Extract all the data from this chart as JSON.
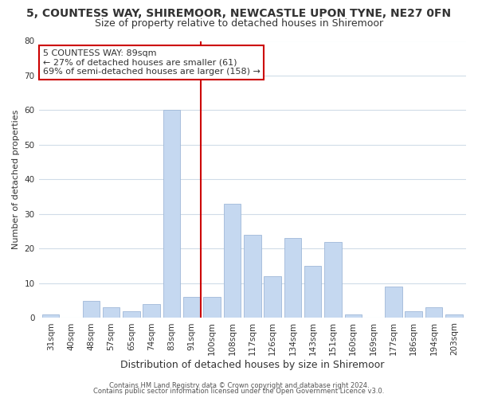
{
  "title": "5, COUNTESS WAY, SHIREMOOR, NEWCASTLE UPON TYNE, NE27 0FN",
  "subtitle": "Size of property relative to detached houses in Shiremoor",
  "xlabel": "Distribution of detached houses by size in Shiremoor",
  "ylabel": "Number of detached properties",
  "categories": [
    "31sqm",
    "40sqm",
    "48sqm",
    "57sqm",
    "65sqm",
    "74sqm",
    "83sqm",
    "91sqm",
    "100sqm",
    "108sqm",
    "117sqm",
    "126sqm",
    "134sqm",
    "143sqm",
    "151sqm",
    "160sqm",
    "169sqm",
    "177sqm",
    "186sqm",
    "194sqm",
    "203sqm"
  ],
  "values": [
    1,
    0,
    5,
    3,
    2,
    4,
    60,
    6,
    6,
    33,
    24,
    12,
    23,
    15,
    22,
    1,
    0,
    9,
    2,
    3,
    1
  ],
  "bar_color": "#c5d8f0",
  "bar_edge_color": "#a0b8d8",
  "highlight_index": 7,
  "highlight_line_color": "#cc0000",
  "ylim": [
    0,
    80
  ],
  "yticks": [
    0,
    10,
    20,
    30,
    40,
    50,
    60,
    70,
    80
  ],
  "annotation_title": "5 COUNTESS WAY: 89sqm",
  "annotation_line1": "← 27% of detached houses are smaller (61)",
  "annotation_line2": "69% of semi-detached houses are larger (158) →",
  "annotation_box_color": "#ffffff",
  "annotation_box_edge": "#cc0000",
  "footer1": "Contains HM Land Registry data © Crown copyright and database right 2024.",
  "footer2": "Contains public sector information licensed under the Open Government Licence v3.0.",
  "background_color": "#ffffff",
  "grid_color": "#d0dce8",
  "title_fontsize": 10,
  "subtitle_fontsize": 9,
  "ylabel_fontsize": 8,
  "xlabel_fontsize": 9,
  "tick_fontsize": 7.5,
  "annotation_fontsize": 8,
  "footer_fontsize": 6
}
